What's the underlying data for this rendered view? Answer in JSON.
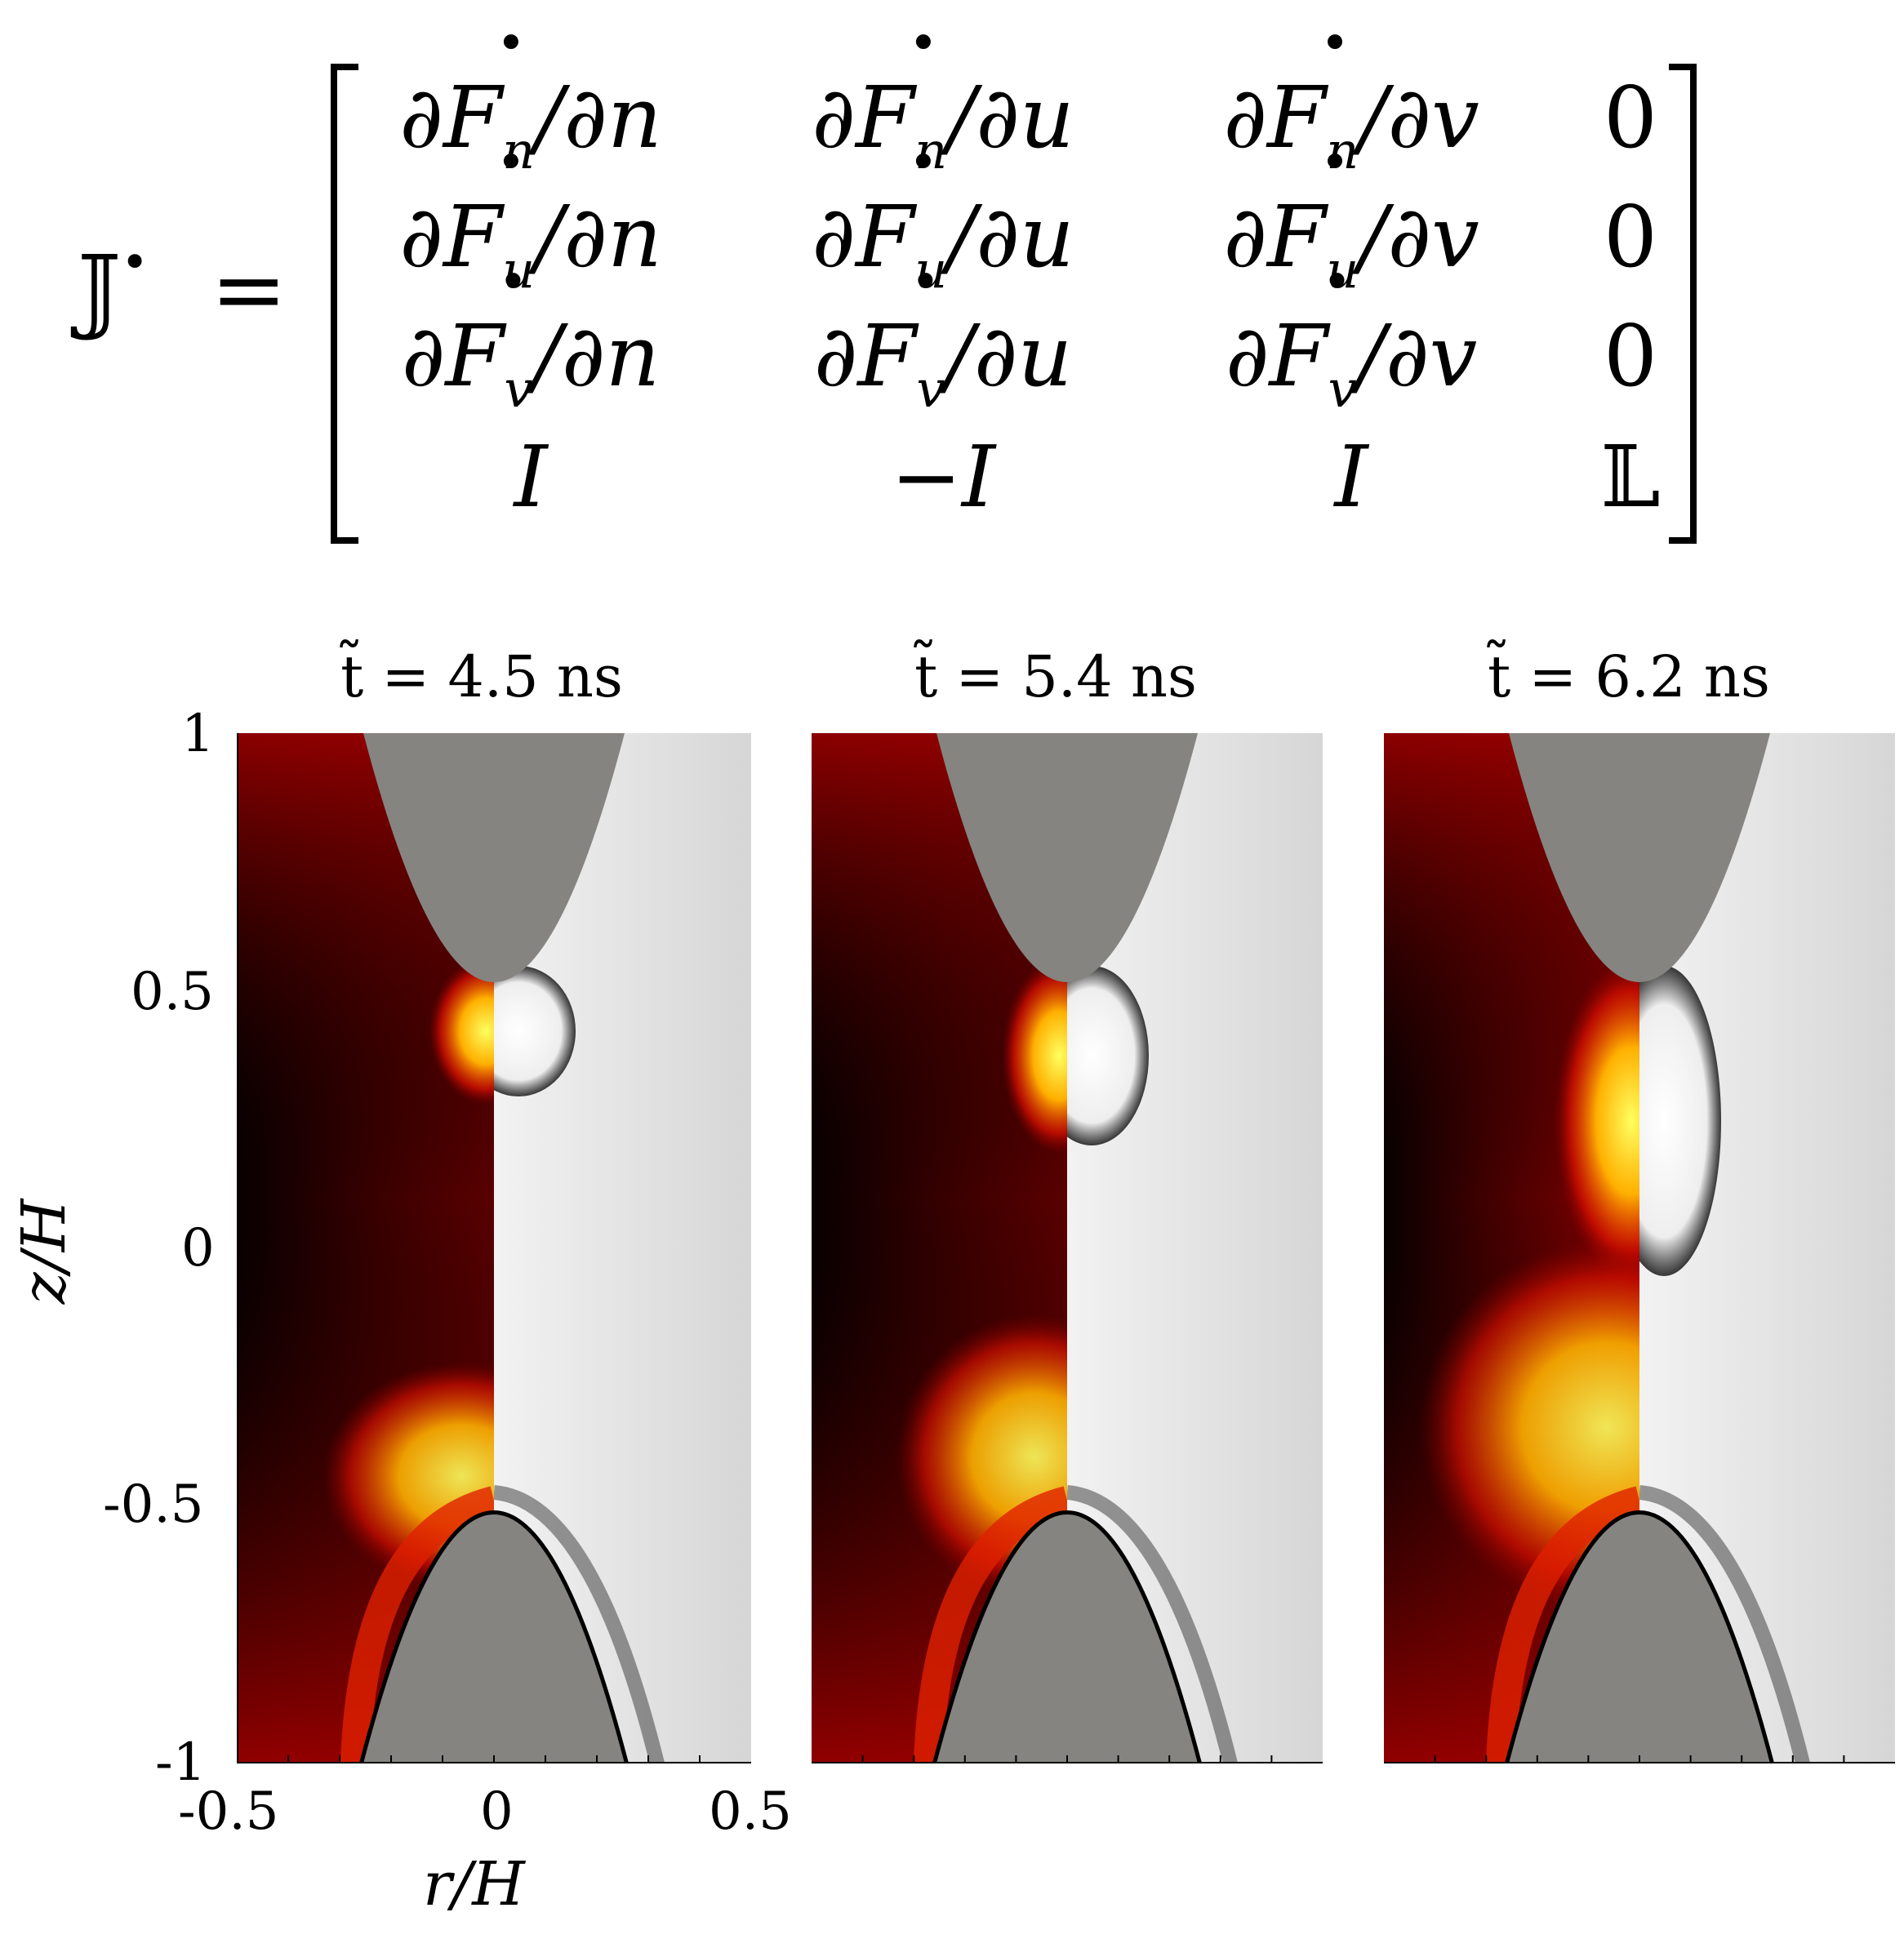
{
  "equation": {
    "lhs_symbol": "𝕁",
    "lhs_superscript": "•",
    "equals": "=",
    "matrix": [
      [
        {
          "d": "∂F",
          "sub": "n",
          "sup": "•",
          "den": "/∂n"
        },
        {
          "d": "∂F",
          "sub": "n",
          "sup": "•",
          "den": "/∂u"
        },
        {
          "d": "∂F",
          "sub": "n",
          "sup": "•",
          "den": "/∂v"
        },
        {
          "plain": "0"
        }
      ],
      [
        {
          "d": "∂F",
          "sub": "u",
          "sup": "•",
          "den": "/∂n"
        },
        {
          "d": "∂F",
          "sub": "u",
          "sup": "•",
          "den": "/∂u"
        },
        {
          "d": "∂F",
          "sub": "u",
          "sup": "•",
          "den": "/∂v"
        },
        {
          "plain": "0"
        }
      ],
      [
        {
          "d": "∂F",
          "sub": "v",
          "sup": "•",
          "den": "/∂n"
        },
        {
          "d": "∂F",
          "sub": "v",
          "sup": "•",
          "den": "/∂u"
        },
        {
          "d": "∂F",
          "sub": "v",
          "sup": "•",
          "den": "/∂v"
        },
        {
          "plain": "0"
        }
      ],
      [
        {
          "plain": "I",
          "italic": true
        },
        {
          "plain": "−I",
          "italic": true
        },
        {
          "plain": "I",
          "italic": true
        },
        {
          "plain": "𝕃"
        }
      ]
    ]
  },
  "panels": {
    "titles": [
      "t̃ = 4.5 ns",
      "t̃ = 5.4 ns",
      "t̃ = 6.2 ns"
    ]
  },
  "axes": {
    "y_label": "z/H",
    "x_label": "r/H",
    "y_ticks": [
      "1",
      "0.5",
      "0",
      "-0.5",
      "-1"
    ],
    "x_ticks": [
      "-0.5",
      "0",
      "0.5"
    ]
  },
  "colors": {
    "electrode": "#858481",
    "hot_dark": "#080000",
    "hot_mid": "#8b0000",
    "hot_bright": "#ffff60",
    "gray_bg": "#e2e2e2"
  }
}
